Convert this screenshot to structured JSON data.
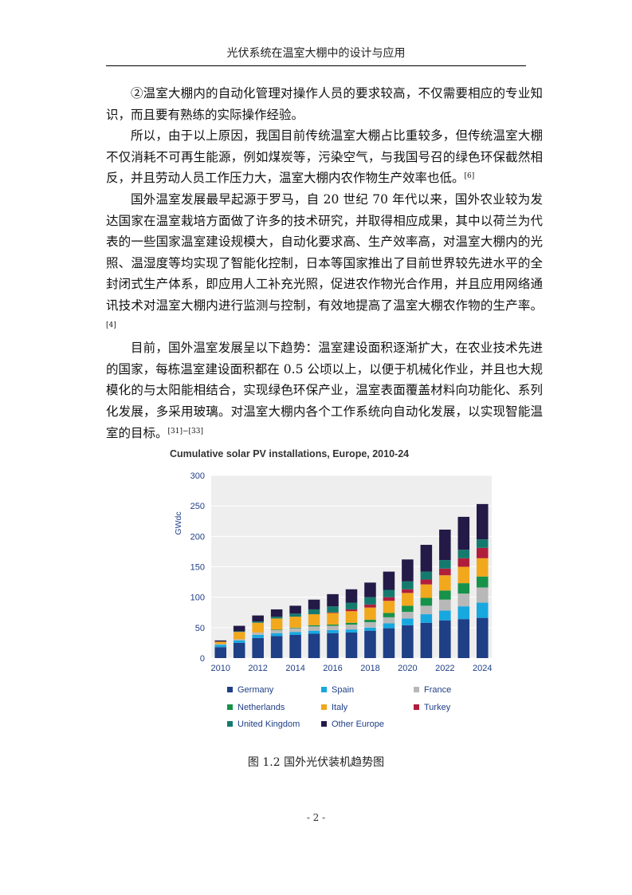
{
  "header": {
    "title": "光伏系统在温室大棚中的设计与应用"
  },
  "paragraphs": [
    {
      "text": "②温室大棚内的自动化管理对操作人员的要求较高，不仅需要相应的专业知识，而且要有熟练的实际操作经验。",
      "cite": ""
    },
    {
      "text": "所以，由于以上原因，我国目前传统温室大棚占比重较多，但传统温室大棚不仅消耗不可再生能源，例如煤炭等，污染空气，与我国号召的绿色环保截然相反，并且劳动人员工作压力大，温室大棚内农作物生产效率也低。",
      "cite": "[6]"
    },
    {
      "text": "国外温室发展最早起源于罗马，自 20 世纪 70 年代以来，国外农业较为发达国家在温室栽培方面做了许多的技术研究，并取得相应成果，其中以荷兰为代表的一些国家温室建设规模大，自动化要求高、生产效率高，对温室大棚内的光照、温湿度等均实现了智能化控制，日本等国家推出了目前世界较先进水平的全封闭式生产体系，即应用人工补充光照，促进农作物光合作用，并且应用网络通讯技术对温室大棚内进行监测与控制，有效地提高了温室大棚农作物的生产率。",
      "cite": "[4]"
    },
    {
      "text": "目前，国外温室发展呈以下趋势：温室建设面积逐渐扩大，在农业技术先进的国家，每栋温室建设面积都在 0.5 公顷以上，以便于机械化作业，并且也大规模化的与太阳能相结合，实现绿色环保产业，温室表面覆盖材料向功能化、系列化发展，多采用玻璃。对温室大棚内各个工作系统向自动化发展，以实现智能温室的目标。",
      "cite": "[31]−[33]"
    }
  ],
  "figure": {
    "caption": "图 1.2 国外光伏装机趋势图"
  },
  "chart_data": {
    "type": "bar",
    "stacked": true,
    "title": "Cumulative solar PV installations, Europe, 2010-24",
    "xlabel": "",
    "ylabel": "GWdc",
    "ylim": [
      0,
      300
    ],
    "yticks": [
      0,
      50,
      100,
      150,
      200,
      250,
      300
    ],
    "grid": true,
    "legend_position": "bottom",
    "categories": [
      "2010",
      "2011",
      "2012",
      "2013",
      "2014",
      "2015",
      "2016",
      "2017",
      "2018",
      "2019",
      "2020",
      "2021",
      "2022",
      "2023",
      "2024"
    ],
    "xtick_labels": [
      "2010",
      "",
      "2012",
      "",
      "2014",
      "",
      "2016",
      "",
      "2018",
      "",
      "2020",
      "",
      "2022",
      "",
      "2024"
    ],
    "series": [
      {
        "name": "Germany",
        "color": "#1f3f86",
        "values": [
          18,
          25,
          33,
          36,
          38,
          40,
          41,
          42,
          45,
          49,
          54,
          58,
          62,
          64,
          66
        ]
      },
      {
        "name": "Spain",
        "color": "#17a8e0",
        "values": [
          4,
          4,
          5,
          5,
          5,
          5,
          5,
          5,
          5,
          8,
          11,
          14,
          16,
          21,
          25
        ]
      },
      {
        "name": "France",
        "color": "#b8b8b8",
        "values": [
          1,
          2,
          4,
          5,
          6,
          7,
          7,
          8,
          9,
          10,
          11,
          14,
          18,
          21,
          25
        ]
      },
      {
        "name": "Netherlands",
        "color": "#16924a",
        "values": [
          0,
          0,
          0,
          1,
          1,
          2,
          2,
          3,
          4,
          7,
          10,
          13,
          15,
          17,
          18
        ]
      },
      {
        "name": "Italy",
        "color": "#f2a81d",
        "values": [
          4,
          12,
          16,
          18,
          18,
          18,
          19,
          19,
          20,
          20,
          21,
          22,
          25,
          27,
          30
        ]
      },
      {
        "name": "Turkey",
        "color": "#b01e3c",
        "values": [
          0,
          0,
          0,
          0,
          0,
          0,
          1,
          3,
          5,
          6,
          6,
          8,
          11,
          14,
          17
        ]
      },
      {
        "name": "United Kingdom",
        "color": "#157a6e",
        "values": [
          0,
          1,
          2,
          3,
          5,
          8,
          10,
          11,
          12,
          12,
          13,
          13,
          14,
          14,
          14
        ]
      },
      {
        "name": "Other Europe",
        "color": "#231a47",
        "values": [
          2,
          9,
          10,
          12,
          13,
          16,
          20,
          22,
          24,
          30,
          36,
          44,
          50,
          54,
          58
        ]
      }
    ]
  },
  "footer": {
    "page_number": "- 2 -"
  }
}
